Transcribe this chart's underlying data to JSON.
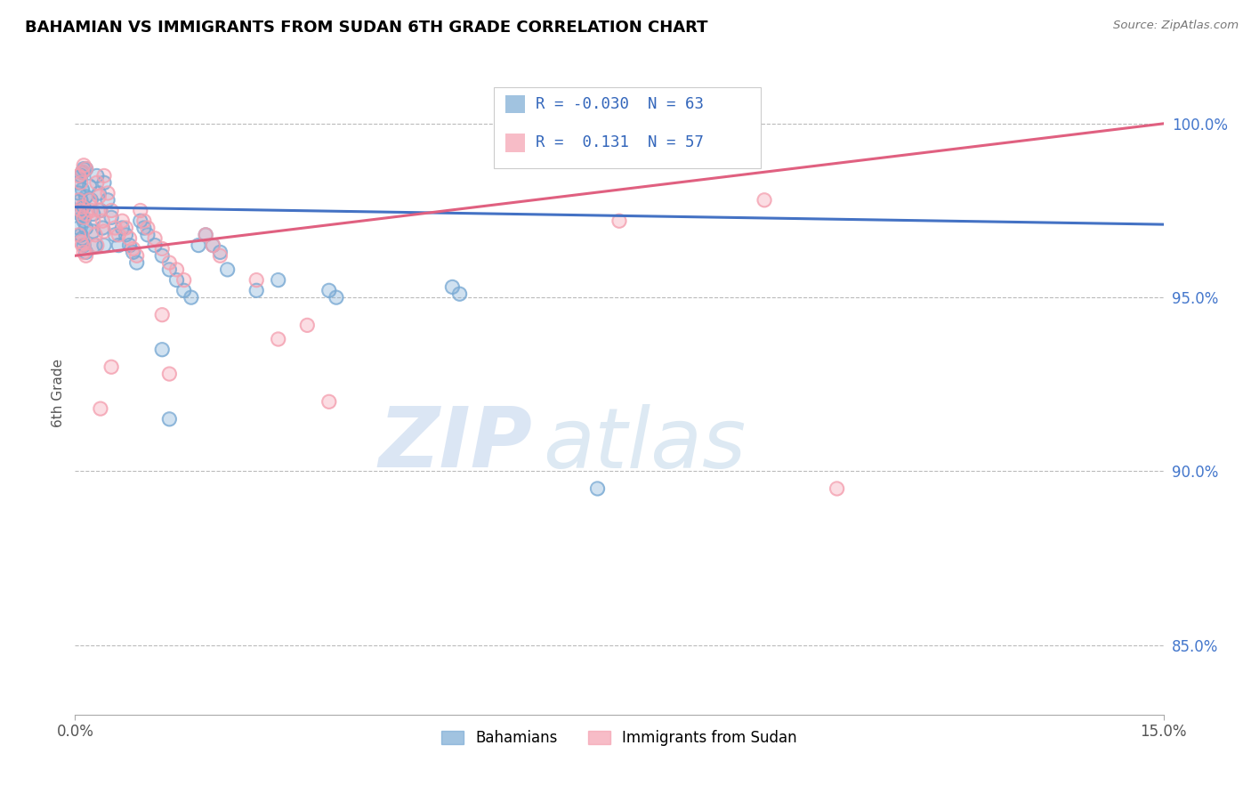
{
  "title": "BAHAMIAN VS IMMIGRANTS FROM SUDAN 6TH GRADE CORRELATION CHART",
  "source_text": "Source: ZipAtlas.com",
  "ylabel": "6th Grade",
  "xlim": [
    0.0,
    15.0
  ],
  "ylim": [
    83.0,
    101.5
  ],
  "yticks": [
    85.0,
    90.0,
    95.0,
    100.0
  ],
  "xticks": [
    0.0,
    15.0
  ],
  "xtick_labels": [
    "0.0%",
    "15.0%"
  ],
  "ytick_labels": [
    "85.0%",
    "90.0%",
    "95.0%",
    "100.0%"
  ],
  "blue_R": -0.03,
  "blue_N": 63,
  "pink_R": 0.131,
  "pink_N": 57,
  "legend_label_blue": "Bahamians",
  "legend_label_pink": "Immigrants from Sudan",
  "watermark_zip": "ZIP",
  "watermark_atlas": "atlas",
  "blue_color": "#7aaad4",
  "pink_color": "#f4a0b0",
  "blue_line_color": "#4472c4",
  "pink_line_color": "#e06080",
  "blue_scatter": [
    [
      0.05,
      98.3
    ],
    [
      0.08,
      98.5
    ],
    [
      0.1,
      98.6
    ],
    [
      0.12,
      98.7
    ],
    [
      0.15,
      98.7
    ],
    [
      0.05,
      98.0
    ],
    [
      0.08,
      97.8
    ],
    [
      0.1,
      98.1
    ],
    [
      0.12,
      97.6
    ],
    [
      0.15,
      97.9
    ],
    [
      0.05,
      97.5
    ],
    [
      0.07,
      97.4
    ],
    [
      0.1,
      97.3
    ],
    [
      0.12,
      97.2
    ],
    [
      0.15,
      97.0
    ],
    [
      0.05,
      97.0
    ],
    [
      0.08,
      96.8
    ],
    [
      0.1,
      96.7
    ],
    [
      0.12,
      96.5
    ],
    [
      0.15,
      96.3
    ],
    [
      0.2,
      98.2
    ],
    [
      0.22,
      97.8
    ],
    [
      0.25,
      97.4
    ],
    [
      0.25,
      96.9
    ],
    [
      0.28,
      96.5
    ],
    [
      0.3,
      98.5
    ],
    [
      0.33,
      98.0
    ],
    [
      0.35,
      97.5
    ],
    [
      0.38,
      97.0
    ],
    [
      0.4,
      96.5
    ],
    [
      0.4,
      98.3
    ],
    [
      0.45,
      97.8
    ],
    [
      0.5,
      97.3
    ],
    [
      0.55,
      96.8
    ],
    [
      0.6,
      96.5
    ],
    [
      0.65,
      97.0
    ],
    [
      0.7,
      96.8
    ],
    [
      0.75,
      96.5
    ],
    [
      0.8,
      96.3
    ],
    [
      0.85,
      96.0
    ],
    [
      0.9,
      97.2
    ],
    [
      0.95,
      97.0
    ],
    [
      1.0,
      96.8
    ],
    [
      1.1,
      96.5
    ],
    [
      1.2,
      96.2
    ],
    [
      1.3,
      95.8
    ],
    [
      1.4,
      95.5
    ],
    [
      1.5,
      95.2
    ],
    [
      1.6,
      95.0
    ],
    [
      1.7,
      96.5
    ],
    [
      1.8,
      96.8
    ],
    [
      1.9,
      96.5
    ],
    [
      2.0,
      96.3
    ],
    [
      2.1,
      95.8
    ],
    [
      2.5,
      95.2
    ],
    [
      2.8,
      95.5
    ],
    [
      3.5,
      95.2
    ],
    [
      3.6,
      95.0
    ],
    [
      5.2,
      95.3
    ],
    [
      5.3,
      95.1
    ],
    [
      7.2,
      89.5
    ],
    [
      1.2,
      93.5
    ],
    [
      1.3,
      91.5
    ]
  ],
  "pink_scatter": [
    [
      0.05,
      98.5
    ],
    [
      0.08,
      98.3
    ],
    [
      0.1,
      98.6
    ],
    [
      0.12,
      98.8
    ],
    [
      0.15,
      98.7
    ],
    [
      0.05,
      97.8
    ],
    [
      0.08,
      97.5
    ],
    [
      0.1,
      97.6
    ],
    [
      0.12,
      97.3
    ],
    [
      0.15,
      97.4
    ],
    [
      0.05,
      96.8
    ],
    [
      0.08,
      96.6
    ],
    [
      0.1,
      96.5
    ],
    [
      0.12,
      96.3
    ],
    [
      0.15,
      96.2
    ],
    [
      0.2,
      97.8
    ],
    [
      0.22,
      97.5
    ],
    [
      0.25,
      97.2
    ],
    [
      0.28,
      96.8
    ],
    [
      0.3,
      96.5
    ],
    [
      0.3,
      98.3
    ],
    [
      0.33,
      97.9
    ],
    [
      0.35,
      97.5
    ],
    [
      0.38,
      97.2
    ],
    [
      0.4,
      96.9
    ],
    [
      0.4,
      98.5
    ],
    [
      0.45,
      98.0
    ],
    [
      0.5,
      97.5
    ],
    [
      0.55,
      97.0
    ],
    [
      0.6,
      96.8
    ],
    [
      0.65,
      97.2
    ],
    [
      0.7,
      97.0
    ],
    [
      0.75,
      96.7
    ],
    [
      0.8,
      96.4
    ],
    [
      0.85,
      96.2
    ],
    [
      0.9,
      97.5
    ],
    [
      0.95,
      97.2
    ],
    [
      1.0,
      97.0
    ],
    [
      1.1,
      96.7
    ],
    [
      1.2,
      96.4
    ],
    [
      1.3,
      96.0
    ],
    [
      1.4,
      95.8
    ],
    [
      1.5,
      95.5
    ],
    [
      1.8,
      96.8
    ],
    [
      1.9,
      96.5
    ],
    [
      2.0,
      96.2
    ],
    [
      2.5,
      95.5
    ],
    [
      2.8,
      93.8
    ],
    [
      3.2,
      94.2
    ],
    [
      1.2,
      94.5
    ],
    [
      1.3,
      92.8
    ],
    [
      3.5,
      92.0
    ],
    [
      0.5,
      93.0
    ],
    [
      0.35,
      91.8
    ],
    [
      7.5,
      97.2
    ],
    [
      9.5,
      97.8
    ],
    [
      10.5,
      89.5
    ]
  ],
  "blue_trendline_x": [
    0.0,
    15.0
  ],
  "blue_trendline_y": [
    97.6,
    97.1
  ],
  "pink_trendline_x": [
    0.0,
    15.0
  ],
  "pink_trendline_y": [
    96.2,
    100.0
  ]
}
